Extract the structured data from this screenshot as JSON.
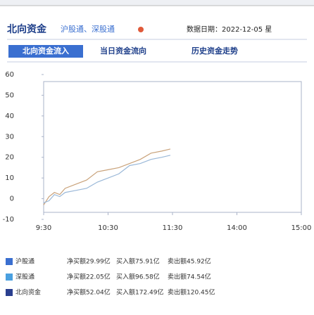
{
  "header": {
    "title": "北向资金",
    "subtitle": "沪股通、深股通",
    "date": "数据日期：2022-12-05 星"
  },
  "tabs": [
    "北向资金流入",
    "当日资金流向",
    "历史资金走势"
  ],
  "chart_data": {
    "type": "line",
    "x": [
      0,
      5,
      10,
      15,
      20,
      30,
      40,
      50,
      60,
      70,
      80,
      90,
      100,
      110,
      118
    ],
    "series": [
      {
        "color": "#c9a27a",
        "values": [
          -3,
          1,
          3,
          2,
          5,
          7,
          9,
          13,
          14,
          15,
          17,
          19,
          22,
          23,
          24
        ]
      },
      {
        "color": "#9ab8d8",
        "values": [
          -2,
          -1,
          2,
          1,
          3,
          4,
          5,
          8,
          10,
          12,
          16,
          17,
          19,
          20,
          21
        ]
      }
    ],
    "xlim": [
      0,
      240
    ],
    "xticks": [
      {
        "value": 0,
        "label": "9:30"
      },
      {
        "value": 60,
        "label": "10:30"
      },
      {
        "value": 120,
        "label": "11:30"
      },
      {
        "value": 180,
        "label": "14:00"
      },
      {
        "value": 240,
        "label": "15:00"
      }
    ],
    "ylim": [
      -10,
      60
    ],
    "yticks": [
      -10,
      0,
      10,
      20,
      30,
      40,
      50,
      60
    ]
  },
  "summary": {
    "rows": [
      {
        "color": "#3a6fd0",
        "cells": [
          "沪股通",
          "净买额29.99亿",
          "买入额75.91亿",
          "卖出额45.92亿"
        ]
      },
      {
        "color": "#4aa0e0",
        "cells": [
          "深股通",
          "净买额22.05亿",
          "买入额96.58亿",
          "卖出额74.54亿"
        ]
      },
      {
        "color": "#2a3f8f",
        "cells": [
          "北向资金",
          "净买额52.04亿",
          "买入额172.49亿",
          "卖出额120.45亿"
        ]
      }
    ]
  }
}
